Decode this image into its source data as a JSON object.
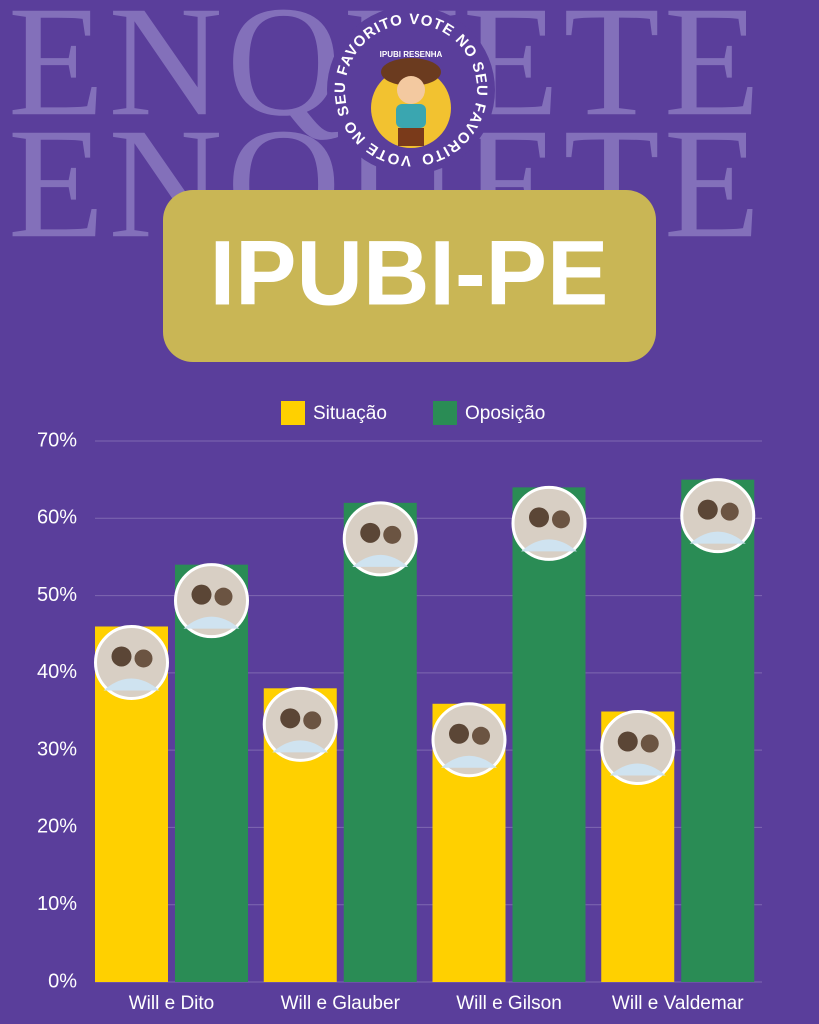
{
  "chart_data": {
    "type": "bar",
    "background_text": [
      "ENQUETE",
      "ENQUETE"
    ],
    "logo": {
      "ring_text": "VOTE NO SEU FAVORITO VOTE NO SEU FAVORITO",
      "name": "IPUBI RESENHA"
    },
    "title": "IPUBI-PE",
    "categories": [
      "Will e Dito",
      "Will e Glauber",
      "Will e Gilson",
      "Will e Valdemar"
    ],
    "series": [
      {
        "name": "Situação",
        "color": "#ffd000",
        "values": [
          46,
          38,
          36,
          35
        ]
      },
      {
        "name": "Oposição",
        "color": "#2a8c55",
        "values": [
          54,
          62,
          64,
          65
        ]
      }
    ],
    "ylim": [
      0,
      70
    ],
    "yticks": [
      {
        "value": 0,
        "label": "0%"
      },
      {
        "value": 10,
        "label": "10%"
      },
      {
        "value": 20,
        "label": "20%"
      },
      {
        "value": 30,
        "label": "30%"
      },
      {
        "value": 40,
        "label": "40%"
      },
      {
        "value": 50,
        "label": "50%"
      },
      {
        "value": 60,
        "label": "60%"
      },
      {
        "value": 70,
        "label": "70%"
      }
    ],
    "grid": true,
    "legend": "top"
  }
}
